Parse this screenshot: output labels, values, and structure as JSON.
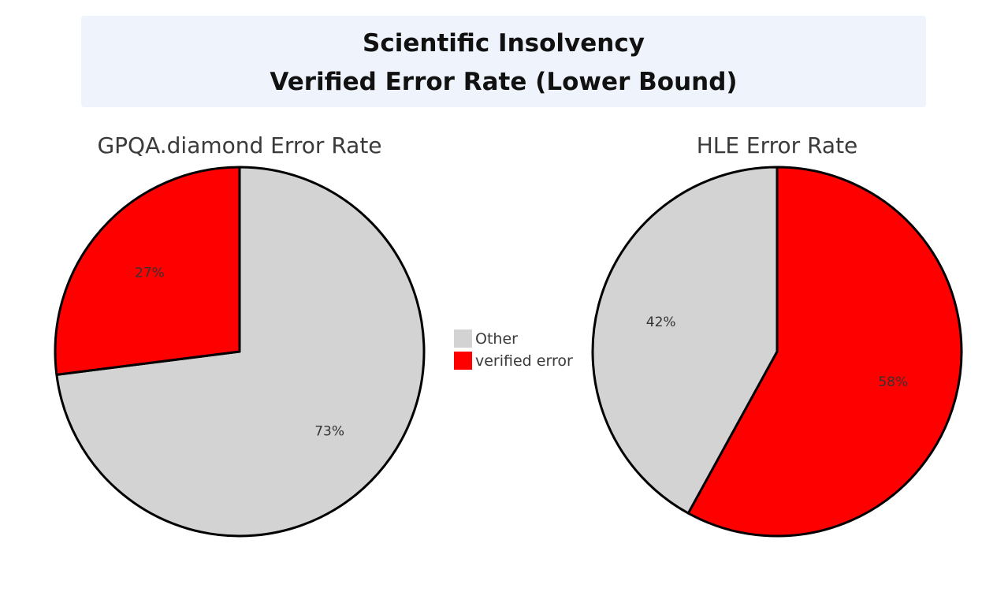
{
  "header": {
    "line1": "Scientific Insolvency",
    "line2": "Verified Error Rate (Lower Bound)",
    "background": "#eef3fc"
  },
  "legend": {
    "items": [
      {
        "label": "Other",
        "color": "#d3d3d3"
      },
      {
        "label": "verified error",
        "color": "#ff0000"
      }
    ]
  },
  "chart_data": [
    {
      "type": "pie",
      "title": "GPQA.diamond Error Rate",
      "slices": [
        {
          "label": "Other",
          "value": 73,
          "display": "73%",
          "color": "#d3d3d3"
        },
        {
          "label": "verified error",
          "value": 27,
          "display": "27%",
          "color": "#ff0000"
        }
      ],
      "start": "12 o'clock",
      "direction": "clockwise"
    },
    {
      "type": "pie",
      "title": "HLE Error Rate",
      "slices": [
        {
          "label": "verified error",
          "value": 58,
          "display": "58%",
          "color": "#ff0000"
        },
        {
          "label": "Other",
          "value": 42,
          "display": "42%",
          "color": "#d3d3d3"
        }
      ],
      "start": "12 o'clock",
      "direction": "clockwise"
    }
  ]
}
